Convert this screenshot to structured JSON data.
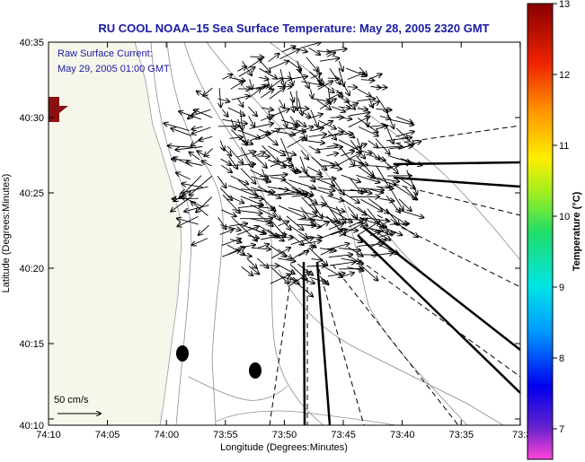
{
  "title": "RU COOL  NOAA–15  Sea Surface Temperature:  May 28, 2005 2320 GMT",
  "inset": {
    "line1": "Raw Surface Current:",
    "line2": "May 29, 2005 01:00 GMT"
  },
  "axes": {
    "xlabel": "Longitude (Degrees:Minutes)",
    "ylabel": "Latitude (Degrees:Minutes)",
    "xticks": [
      "74:10",
      "74:05",
      "74:00",
      "73:55",
      "73:50",
      "73:45",
      "73:40",
      "73:35",
      "73:3"
    ],
    "yticks": [
      "40:35",
      "40:30",
      "40:25",
      "40:20",
      "40:15",
      "40:10"
    ]
  },
  "colorbar": {
    "label": "Temperature (°C)",
    "ticks": [
      "13",
      "12",
      "11",
      "10",
      "9",
      "8",
      "7"
    ]
  },
  "scale_vector": {
    "label": "50 cm/s"
  },
  "colors": {
    "title": "#1a1aa6",
    "land": "#f6f6ea",
    "vectors": "#000000"
  }
}
